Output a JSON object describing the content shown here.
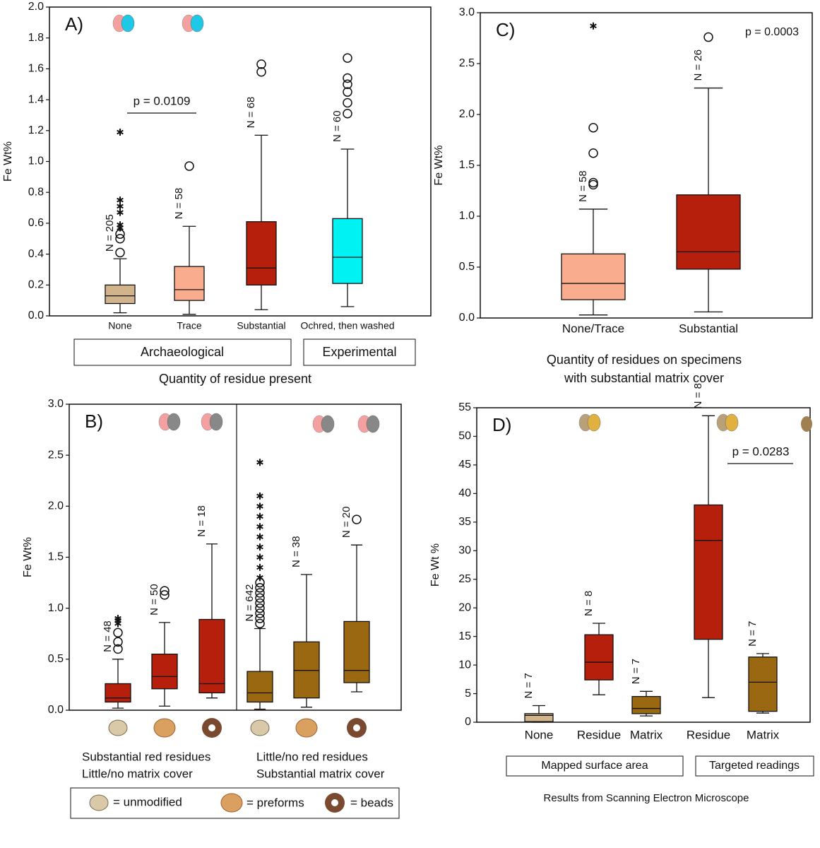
{
  "chart_data": [
    {
      "type": "box",
      "title": "A)",
      "ylabel": "Fe Wt%",
      "xlabel": "Quantity of residue present",
      "ylim": [
        0,
        2.0
      ],
      "yticks": [
        {
          "value": 0,
          "label": "0.0"
        },
        0.2,
        0.4,
        0.6,
        0.8,
        {
          "value": 1,
          "label": "1.0"
        },
        1.2,
        1.4,
        1.6,
        1.8,
        {
          "value": 2,
          "label": "2.0"
        }
      ],
      "categories": [
        "None",
        "Trace",
        "Substantial",
        "Ochred, then washed"
      ],
      "groups": [
        "Archaeological",
        "Experimental"
      ],
      "annotation": "p = 0.0109",
      "boxes": [
        {
          "min": 0.02,
          "q1": 0.08,
          "median": 0.13,
          "q3": 0.2,
          "max": 0.37,
          "outliers": [
            0.41,
            0.5,
            0.53
          ],
          "extremes": [
            0.57,
            0.59,
            0.67,
            0.71,
            0.75,
            1.19
          ],
          "color": "#d2b48c",
          "n_label": "N = 205"
        },
        {
          "min": 0.01,
          "q1": 0.1,
          "median": 0.17,
          "q3": 0.32,
          "max": 0.58,
          "outliers": [
            0.97
          ],
          "extremes": [],
          "color": "#f9ad8e",
          "n_label": "N = 58"
        },
        {
          "min": 0.04,
          "q1": 0.2,
          "median": 0.31,
          "q3": 0.61,
          "max": 1.17,
          "outliers": [
            1.58,
            1.63
          ],
          "extremes": [],
          "color": "#b51f0c",
          "n_label": "N = 68"
        },
        {
          "min": 0.06,
          "q1": 0.21,
          "median": 0.38,
          "q3": 0.63,
          "max": 1.08,
          "outliers": [
            1.31,
            1.38,
            1.45,
            1.5,
            1.54,
            1.67
          ],
          "extremes": [],
          "color": "#00f2f2",
          "n_label": "N = 60"
        }
      ]
    },
    {
      "type": "box",
      "title": "B)",
      "ylabel": "Fe Wt%",
      "ylim": [
        0,
        3.0
      ],
      "yticks": [
        {
          "value": 0,
          "label": "0.0"
        },
        0.5,
        {
          "value": 1,
          "label": "1.0"
        },
        1.5,
        {
          "value": 2,
          "label": "2.0"
        },
        2.5,
        {
          "value": 3,
          "label": "3.0"
        }
      ],
      "groups": [
        [
          "Substantial red residues",
          "Little/no matrix cover"
        ],
        [
          "Little/no red residues",
          "Substantial matrix  cover"
        ]
      ],
      "legend": [
        "= unmodified",
        "= preforms",
        "= beads"
      ],
      "boxes": [
        {
          "min": 0.02,
          "q1": 0.08,
          "median": 0.12,
          "q3": 0.26,
          "max": 0.5,
          "outliers": [
            0.6,
            0.67,
            0.76
          ],
          "extremes": [
            0.85,
            0.88,
            0.9
          ],
          "color": "#b51f0c",
          "n_label": "N = 48"
        },
        {
          "min": 0.04,
          "q1": 0.21,
          "median": 0.33,
          "q3": 0.55,
          "max": 0.86,
          "outliers": [
            1.13,
            1.17
          ],
          "extremes": [],
          "color": "#b51f0c",
          "n_label": "N = 50"
        },
        {
          "min": 0.12,
          "q1": 0.17,
          "median": 0.26,
          "q3": 0.89,
          "max": 1.63,
          "outliers": [],
          "extremes": [],
          "color": "#b51f0c",
          "n_label": "N = 18"
        },
        {
          "min": 0.01,
          "q1": 0.08,
          "median": 0.17,
          "q3": 0.38,
          "max": 0.8,
          "outliers": [
            0.85,
            0.9,
            0.95,
            1.0,
            1.05,
            1.1,
            1.15,
            1.2,
            1.25
          ],
          "extremes": [
            1.3,
            1.4,
            1.5,
            1.6,
            1.7,
            1.8,
            1.9,
            2.0,
            2.1,
            2.43
          ],
          "color": "#9a6810",
          "n_label": "N = 642"
        },
        {
          "min": 0.03,
          "q1": 0.12,
          "median": 0.39,
          "q3": 0.67,
          "max": 1.33,
          "outliers": [],
          "extremes": [],
          "color": "#9a6810",
          "n_label": "N = 38"
        },
        {
          "min": 0.18,
          "q1": 0.27,
          "median": 0.39,
          "q3": 0.87,
          "max": 1.62,
          "outliers": [
            1.87
          ],
          "extremes": [],
          "color": "#9a6810",
          "n_label": "N = 20"
        }
      ]
    },
    {
      "type": "box",
      "title": "C)",
      "ylabel": "Fe Wt%",
      "xlabel_lines": [
        "Quantity of residues on specimens",
        "with substantial matrix cover"
      ],
      "ylim": [
        0,
        3.0
      ],
      "yticks": [
        {
          "value": 0,
          "label": "0.0"
        },
        0.5,
        {
          "value": 1,
          "label": "1.0"
        },
        1.5,
        {
          "value": 2,
          "label": "2.0"
        },
        2.5,
        {
          "value": 3,
          "label": "3.0"
        }
      ],
      "categories": [
        "None/Trace",
        "Substantial"
      ],
      "annotation": "p = 0.0003",
      "boxes": [
        {
          "min": 0.03,
          "q1": 0.18,
          "median": 0.34,
          "q3": 0.63,
          "max": 1.07,
          "outliers": [
            1.31,
            1.33,
            1.62,
            1.87
          ],
          "extremes": [
            2.87
          ],
          "color": "#f9ad8e",
          "n_label": "N = 58"
        },
        {
          "min": 0.06,
          "q1": 0.48,
          "median": 0.65,
          "q3": 1.21,
          "max": 2.26,
          "outliers": [
            2.76
          ],
          "extremes": [],
          "color": "#b51f0c",
          "n_label": "N = 26"
        }
      ]
    },
    {
      "type": "box",
      "title": "D)",
      "ylabel": "Fe Wt %",
      "xlabel": "Results from Scanning Electron Microscope",
      "ylim": [
        0,
        55
      ],
      "yticks": [
        0,
        5,
        10,
        15,
        20,
        25,
        30,
        35,
        40,
        45,
        50,
        55
      ],
      "categories": [
        "None",
        "Residue",
        "Matrix",
        "Residue",
        "Matrix"
      ],
      "groups": [
        "Mapped surface area",
        "Targeted readings"
      ],
      "annotation": "p = 0.0283",
      "boxes": [
        {
          "min": 0,
          "q1": 0.1,
          "median": 1.2,
          "q3": 1.5,
          "max": 2.9,
          "outliers": [],
          "extremes": [],
          "color": "#d2b48c",
          "n_label": "N = 7"
        },
        {
          "min": 4.8,
          "q1": 7.4,
          "median": 10.5,
          "q3": 15.3,
          "max": 17.3,
          "outliers": [],
          "extremes": [],
          "color": "#b51f0c",
          "n_label": "N = 8"
        },
        {
          "min": 1.1,
          "q1": 1.5,
          "median": 2.4,
          "q3": 4.5,
          "max": 5.4,
          "outliers": [],
          "extremes": [],
          "color": "#9a6810",
          "n_label": "N = 7"
        },
        {
          "min": 4.3,
          "q1": 14.5,
          "median": 31.8,
          "q3": 38,
          "max": 53.6,
          "outliers": [],
          "extremes": [],
          "color": "#b51f0c",
          "n_label": "N = 8"
        },
        {
          "min": 1.6,
          "q1": 1.9,
          "median": 7.0,
          "q3": 11.4,
          "max": 12.0,
          "outliers": [],
          "extremes": [],
          "color": "#9a6810",
          "n_label": "N = 7"
        }
      ]
    }
  ]
}
